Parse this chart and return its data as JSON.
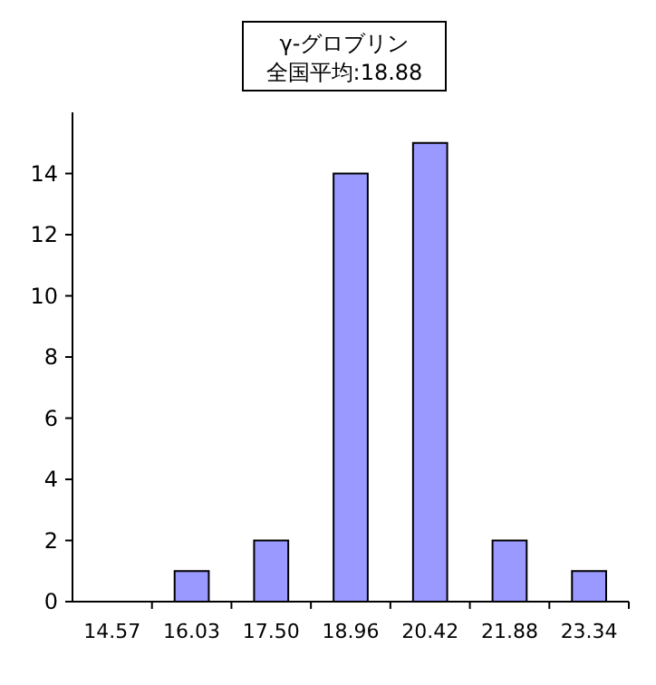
{
  "chart_data": {
    "type": "bar",
    "title": "γ-グロブリン",
    "subtitle": "全国平均:18.88",
    "categories": [
      "14.57",
      "16.03",
      "17.50",
      "18.96",
      "20.42",
      "21.88",
      "23.34"
    ],
    "values": [
      0,
      1,
      2,
      14,
      15,
      2,
      1
    ],
    "color": "#9999ff",
    "ylim": [
      0,
      16
    ],
    "yticks": [
      0,
      2,
      4,
      6,
      8,
      10,
      12,
      14
    ],
    "grid": false
  }
}
